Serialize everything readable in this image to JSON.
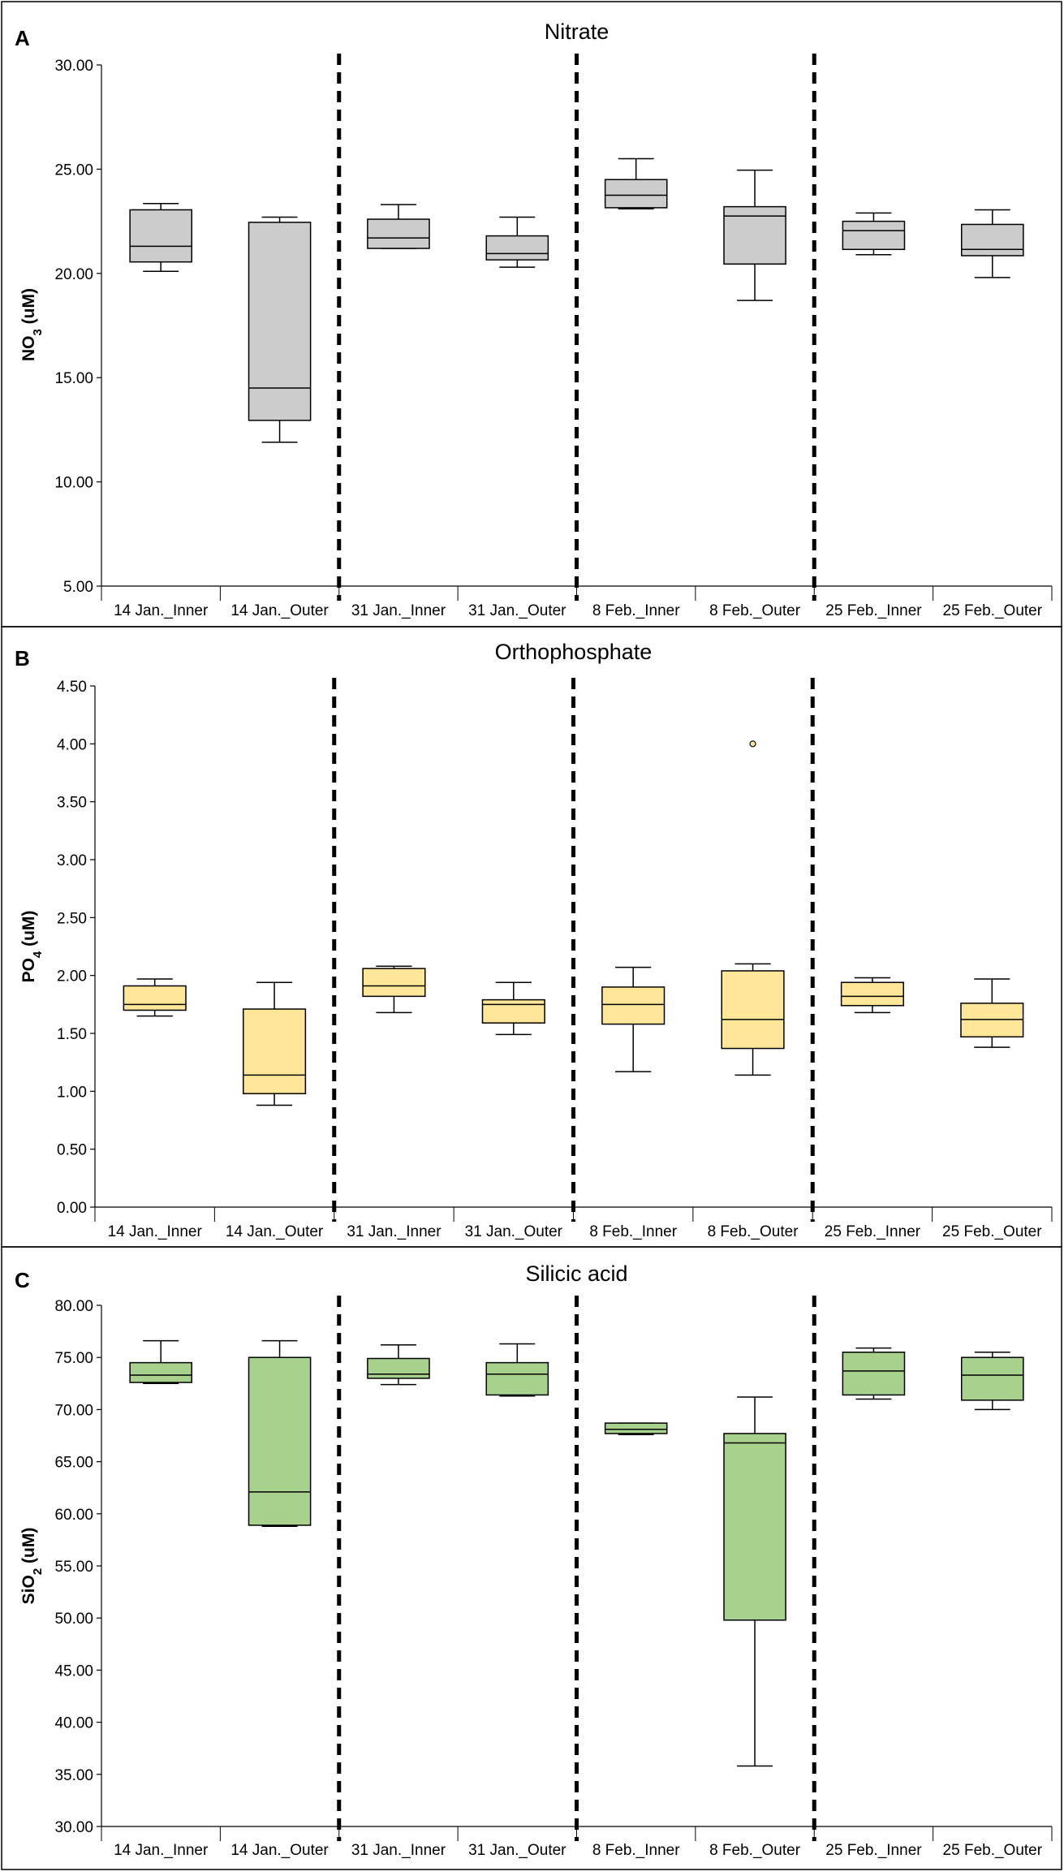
{
  "chart_data": [
    {
      "type": "box",
      "panel": "A",
      "title": "Nitrate",
      "ylabel": "NO",
      "ylabel_sub": "3",
      "ylabel_unit": " (uM)",
      "ylim": [
        5,
        30
      ],
      "yticks": [
        5,
        10,
        15,
        20,
        25,
        30
      ],
      "ytick_labels": [
        "5.00",
        "10.00",
        "15.00",
        "20.00",
        "25.00",
        "30.00"
      ],
      "categories": [
        "14 Jan._Inner",
        "14 Jan._Outer",
        "31 Jan._Inner",
        "31 Jan._Outer",
        "8 Feb._Inner",
        "8 Feb._Outer",
        "25 Feb._Inner",
        "25 Feb._Outer"
      ],
      "fill": "#cccccc",
      "outlier_color": "#ffffff",
      "boxes": [
        {
          "min": 20.1,
          "q1": 20.55,
          "median": 21.3,
          "q3": 23.05,
          "max": 23.35,
          "outliers": []
        },
        {
          "min": 11.9,
          "q1": 12.95,
          "median": 14.5,
          "q3": 22.45,
          "max": 22.7,
          "outliers": []
        },
        {
          "min": 21.2,
          "q1": 21.2,
          "median": 21.7,
          "q3": 22.6,
          "max": 23.3,
          "outliers": []
        },
        {
          "min": 20.3,
          "q1": 20.65,
          "median": 20.95,
          "q3": 21.8,
          "max": 22.7,
          "outliers": []
        },
        {
          "min": 23.1,
          "q1": 23.15,
          "median": 23.75,
          "q3": 24.5,
          "max": 25.5,
          "outliers": []
        },
        {
          "min": 18.7,
          "q1": 20.45,
          "median": 22.75,
          "q3": 23.2,
          "max": 24.95,
          "outliers": []
        },
        {
          "min": 20.9,
          "q1": 21.15,
          "median": 22.05,
          "q3": 22.5,
          "max": 22.9,
          "outliers": []
        },
        {
          "min": 19.8,
          "q1": 20.85,
          "median": 21.15,
          "q3": 22.35,
          "max": 23.05,
          "outliers": []
        }
      ]
    },
    {
      "type": "box",
      "panel": "B",
      "title": "Orthophosphate",
      "ylabel": "PO",
      "ylabel_sub": "4",
      "ylabel_unit": "  (uM)",
      "ylim": [
        0,
        4.5
      ],
      "yticks": [
        0,
        0.5,
        1,
        1.5,
        2,
        2.5,
        3,
        3.5,
        4,
        4.5
      ],
      "ytick_labels": [
        "0.00",
        "0.50",
        "1.00",
        "1.50",
        "2.00",
        "2.50",
        "3.00",
        "3.50",
        "4.00",
        "4.50"
      ],
      "categories": [
        "14 Jan._Inner",
        "14 Jan._Outer",
        "31 Jan._Inner",
        "31 Jan._Outer",
        "8 Feb._Inner",
        "8 Feb._Outer",
        "25 Feb._Inner",
        "25 Feb._Outer"
      ],
      "fill": "#ffe699",
      "outlier_color": "#ffe699",
      "boxes": [
        {
          "min": 1.65,
          "q1": 1.7,
          "median": 1.75,
          "q3": 1.91,
          "max": 1.97,
          "outliers": []
        },
        {
          "min": 0.88,
          "q1": 0.98,
          "median": 1.14,
          "q3": 1.71,
          "max": 1.94,
          "outliers": []
        },
        {
          "min": 1.68,
          "q1": 1.82,
          "median": 1.91,
          "q3": 2.06,
          "max": 2.08,
          "outliers": []
        },
        {
          "min": 1.49,
          "q1": 1.59,
          "median": 1.75,
          "q3": 1.79,
          "max": 1.94,
          "outliers": []
        },
        {
          "min": 1.17,
          "q1": 1.58,
          "median": 1.75,
          "q3": 1.9,
          "max": 2.07,
          "outliers": []
        },
        {
          "min": 1.14,
          "q1": 1.37,
          "median": 1.62,
          "q3": 2.04,
          "max": 2.1,
          "outliers": [
            4.0
          ]
        },
        {
          "min": 1.68,
          "q1": 1.74,
          "median": 1.82,
          "q3": 1.94,
          "max": 1.98,
          "outliers": []
        },
        {
          "min": 1.38,
          "q1": 1.47,
          "median": 1.62,
          "q3": 1.76,
          "max": 1.97,
          "outliers": []
        }
      ]
    },
    {
      "type": "box",
      "panel": "C",
      "title": "Silicic acid",
      "ylabel": "SiO",
      "ylabel_sub": "2",
      "ylabel_unit": " (uM)",
      "ylim": [
        30,
        80
      ],
      "yticks": [
        30,
        35,
        40,
        45,
        50,
        55,
        60,
        65,
        70,
        75,
        80
      ],
      "ytick_labels": [
        "30.00",
        "35.00",
        "40.00",
        "45.00",
        "50.00",
        "55.00",
        "60.00",
        "65.00",
        "70.00",
        "75.00",
        "80.00"
      ],
      "categories": [
        "14 Jan._Inner",
        "14 Jan._Outer",
        "31 Jan._Inner",
        "31 Jan._Outer",
        "8 Feb._Inner",
        "8 Feb._Outer",
        "25 Feb._Inner",
        "25 Feb._Outer"
      ],
      "fill": "#a9d18e",
      "outlier_color": "#a9d18e",
      "boxes": [
        {
          "min": 72.5,
          "q1": 72.6,
          "median": 73.3,
          "q3": 74.5,
          "max": 76.6,
          "outliers": []
        },
        {
          "min": 58.8,
          "q1": 58.9,
          "median": 62.1,
          "q3": 75.0,
          "max": 76.6,
          "outliers": []
        },
        {
          "min": 72.4,
          "q1": 73.0,
          "median": 73.4,
          "q3": 74.9,
          "max": 76.2,
          "outliers": []
        },
        {
          "min": 71.3,
          "q1": 71.4,
          "median": 73.4,
          "q3": 74.5,
          "max": 76.3,
          "outliers": []
        },
        {
          "min": 67.6,
          "q1": 67.7,
          "median": 68.1,
          "q3": 68.7,
          "max": 68.7,
          "outliers": []
        },
        {
          "min": 35.8,
          "q1": 49.8,
          "median": 66.8,
          "q3": 67.7,
          "max": 71.2,
          "outliers": []
        },
        {
          "min": 71.0,
          "q1": 71.4,
          "median": 73.7,
          "q3": 75.5,
          "max": 75.9,
          "outliers": []
        },
        {
          "min": 70.0,
          "q1": 70.9,
          "median": 73.3,
          "q3": 75.0,
          "max": 75.5,
          "outliers": []
        }
      ]
    }
  ]
}
